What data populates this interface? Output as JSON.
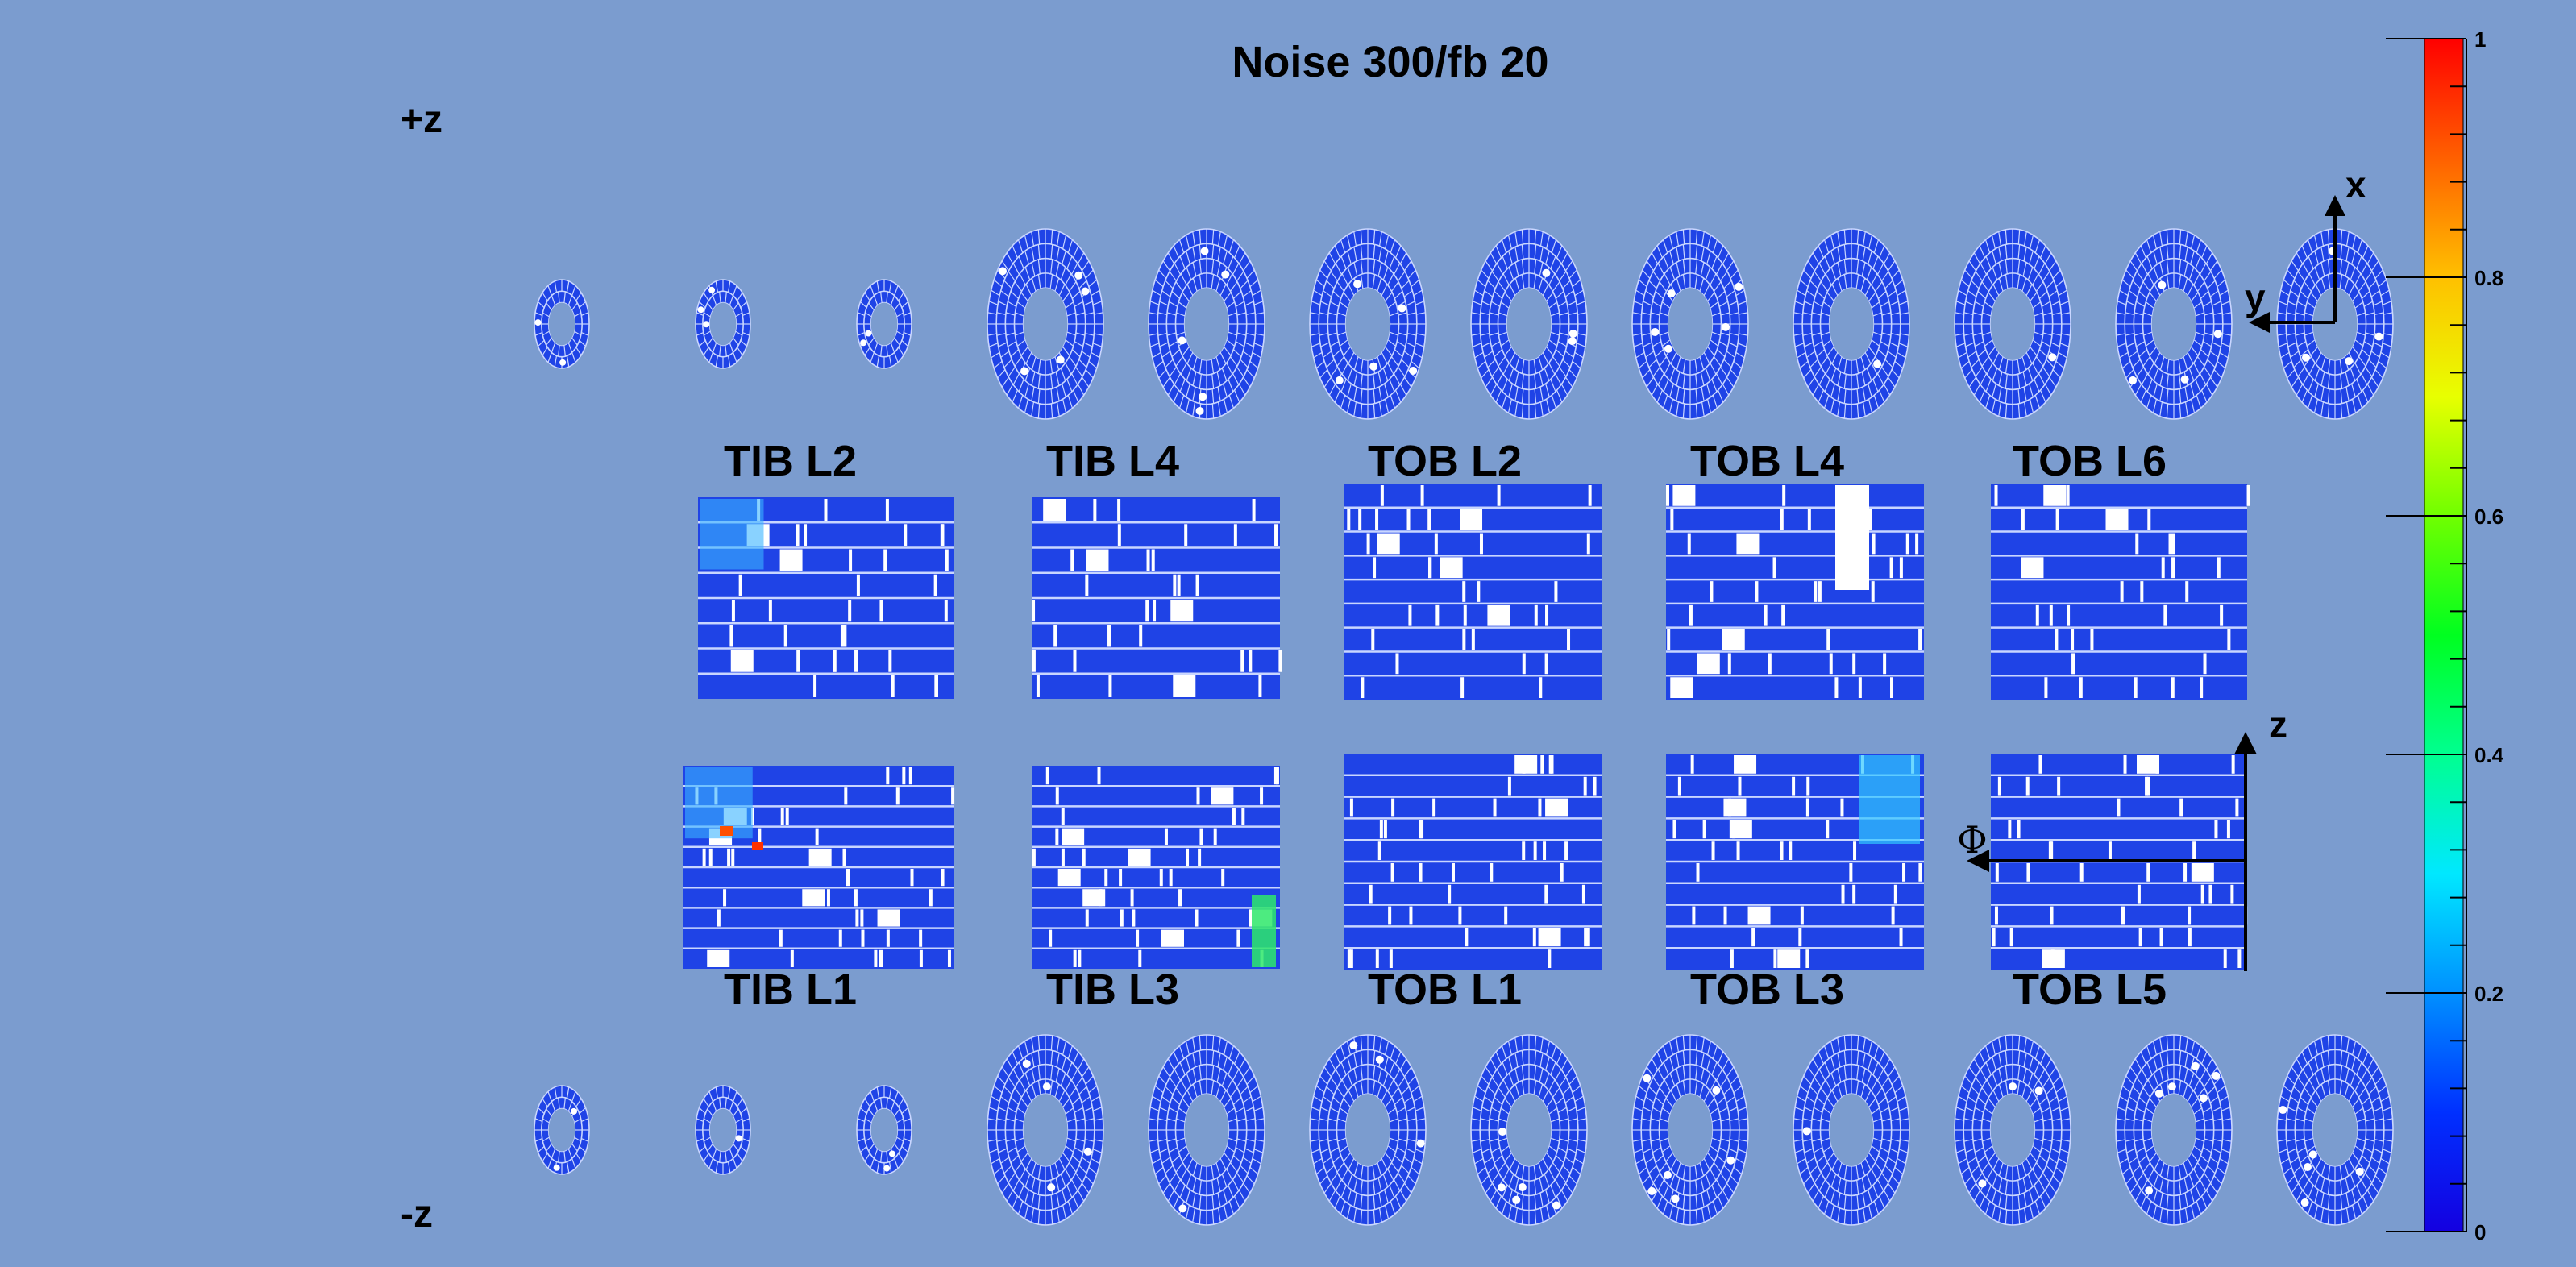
{
  "chart_data": {
    "type": "heatmap",
    "title": "Noise 300/fb 20",
    "z_labels": {
      "plus": "+z",
      "minus": "-z"
    },
    "upper_panels": [
      "TIB L2",
      "TIB L4",
      "TOB L2",
      "TOB L4",
      "TOB L6"
    ],
    "lower_panels": [
      "TIB L1",
      "TIB L3",
      "TOB L1",
      "TOB L3",
      "TOB L5"
    ],
    "axes": {
      "x": "x",
      "y": "y",
      "z": "z",
      "phi": "Φ"
    },
    "colorbar": {
      "min": 0,
      "max": 1,
      "tick_labels": [
        "0",
        "0.2",
        "0.4",
        "0.6",
        "0.8",
        "1"
      ],
      "palette": "rainbow"
    },
    "disks_per_side": 12,
    "small_disks_per_side": 3,
    "background_color": "#7b9ccf",
    "module_color": "#1f43e6",
    "dead_module_color": "#ffffff"
  }
}
